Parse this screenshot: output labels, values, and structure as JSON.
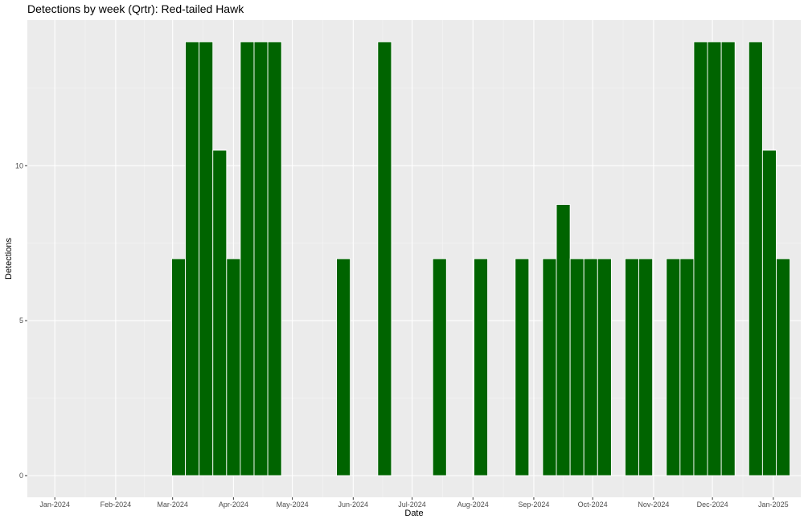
{
  "chart_data": {
    "type": "bar",
    "title": "Detections by week (Qrtr): Red-tailed Hawk",
    "xlabel": "Date",
    "ylabel": "Detections",
    "x_ticks": [
      "Jan-2024",
      "Feb-2024",
      "Mar-2024",
      "Apr-2024",
      "May-2024",
      "Jun-2024",
      "Jul-2024",
      "Aug-2024",
      "Sep-2024",
      "Oct-2024",
      "Nov-2024",
      "Dec-2024",
      "Jan-2025"
    ],
    "y_ticks": [
      0,
      5,
      10
    ],
    "xlim": [
      "2023-12-18",
      "2025-01-15"
    ],
    "ylim": [
      -0.7,
      14.7
    ],
    "grid": true,
    "bar_color": "#006400",
    "panel_color": "#EBEBEB",
    "series": [
      {
        "x": [
          "2024-03-04",
          "2024-03-11",
          "2024-03-18",
          "2024-03-25",
          "2024-04-01",
          "2024-04-08",
          "2024-04-15",
          "2024-04-22",
          "2024-05-27",
          "2024-06-17",
          "2024-07-15",
          "2024-08-05",
          "2024-08-26",
          "2024-09-09",
          "2024-09-16",
          "2024-09-23",
          "2024-09-30",
          "2024-10-07",
          "2024-10-21",
          "2024-10-28",
          "2024-11-11",
          "2024-11-18",
          "2024-11-25",
          "2024-12-02",
          "2024-12-09",
          "2024-12-23",
          "2024-12-30",
          "2025-01-06"
        ],
        "values": [
          7,
          14,
          14,
          10.5,
          7,
          14,
          14,
          14,
          7,
          14,
          7,
          7,
          7,
          7,
          8.75,
          7,
          7,
          7,
          7,
          7,
          7,
          7,
          14,
          14,
          14,
          14,
          10.5,
          7
        ]
      }
    ]
  }
}
